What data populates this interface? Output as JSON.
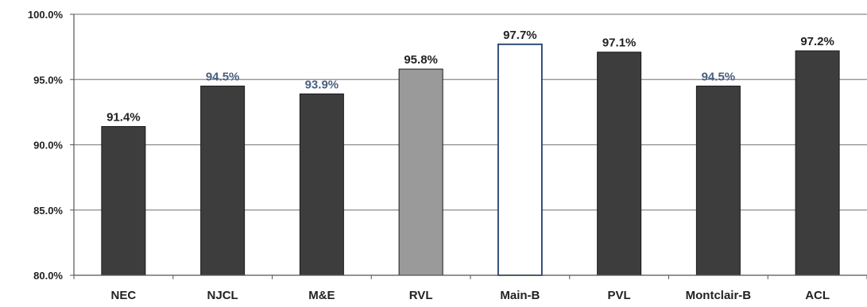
{
  "chart_data": {
    "type": "bar",
    "title": "",
    "xlabel": "",
    "ylabel": "",
    "categories": [
      "NEC",
      "NJCL",
      "M&E",
      "RVL",
      "Main-B",
      "PVL",
      "Montclair-B",
      "ACL"
    ],
    "values": [
      91.4,
      94.5,
      93.9,
      95.8,
      97.7,
      97.1,
      94.5,
      97.2
    ],
    "data_labels": [
      "91.4%",
      "94.5%",
      "93.9%",
      "95.8%",
      "97.7%",
      "97.1%",
      "94.5%",
      "97.2%"
    ],
    "ylim": [
      80,
      100
    ],
    "yticks": [
      80,
      85,
      90,
      95,
      100
    ],
    "ytick_labels": [
      "80.0%",
      "85.0%",
      "90.0%",
      "95.0%",
      "100.0%"
    ],
    "grid": true,
    "legend": "none",
    "colors": {
      "bar": "#3d3d3d",
      "highlight_gray": "#9a9a9a",
      "highlight_white": "#ffffff",
      "bar_border": "#1a1a1a",
      "white_bar_border": "#1f3f6e",
      "label_dark": "#222222",
      "label_blue": "#4a5f80"
    },
    "bar_fills": [
      "#3d3d3d",
      "#3d3d3d",
      "#3d3d3d",
      "#9a9a9a",
      "#ffffff",
      "#3d3d3d",
      "#3d3d3d",
      "#3d3d3d"
    ],
    "label_colors": [
      "#222222",
      "#4a5f80",
      "#4a5f80",
      "#222222",
      "#222222",
      "#222222",
      "#4a5f80",
      "#222222"
    ]
  }
}
